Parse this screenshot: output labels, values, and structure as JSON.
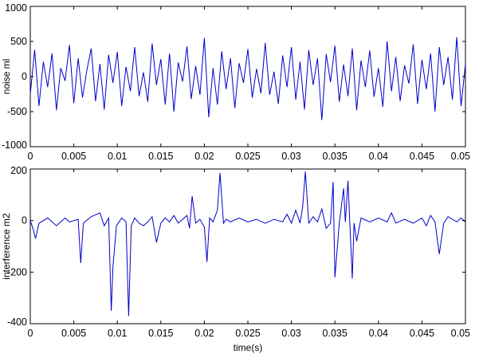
{
  "chart_data": [
    {
      "type": "line",
      "title": "",
      "xlabel": "",
      "ylabel": "noise ml",
      "xlim": [
        0,
        0.05
      ],
      "ylim": [
        -1000,
        1000
      ],
      "x_ticks": [
        "0",
        "0.005",
        "0.01",
        "0.015",
        "0.02",
        "0.025",
        "0.03",
        "0.035",
        "0.04",
        "0.045",
        "0.05"
      ],
      "y_ticks": [
        "1000",
        "500",
        "0",
        "-500",
        "-1000"
      ],
      "grid": false,
      "series": [
        {
          "color": "#0000cc",
          "x": [
            0,
            0.0005,
            0.001,
            0.0015,
            0.002,
            0.0025,
            0.003,
            0.0035,
            0.004,
            0.0045,
            0.005,
            0.0055,
            0.006,
            0.0065,
            0.007,
            0.0075,
            0.008,
            0.0085,
            0.009,
            0.0095,
            0.01,
            0.0105,
            0.011,
            0.0115,
            0.012,
            0.0125,
            0.013,
            0.0135,
            0.014,
            0.0145,
            0.015,
            0.0155,
            0.016,
            0.0165,
            0.017,
            0.0175,
            0.018,
            0.0185,
            0.019,
            0.0195,
            0.02,
            0.0205,
            0.021,
            0.0215,
            0.022,
            0.0225,
            0.023,
            0.0235,
            0.024,
            0.0245,
            0.025,
            0.0255,
            0.026,
            0.0265,
            0.027,
            0.0275,
            0.028,
            0.0285,
            0.029,
            0.0295,
            0.03,
            0.0305,
            0.031,
            0.0315,
            0.032,
            0.0325,
            0.033,
            0.0335,
            0.034,
            0.0345,
            0.035,
            0.0355,
            0.036,
            0.0365,
            0.037,
            0.0375,
            0.038,
            0.0385,
            0.039,
            0.0395,
            0.04,
            0.0405,
            0.041,
            0.0415,
            0.042,
            0.0425,
            0.043,
            0.0435,
            0.044,
            0.0445,
            0.045,
            0.0455,
            0.046,
            0.0465,
            0.047,
            0.0475,
            0.048,
            0.0485,
            0.049,
            0.0495,
            0.05
          ],
          "values": [
            -250,
            380,
            -420,
            210,
            -150,
            330,
            -480,
            120,
            -60,
            450,
            -380,
            260,
            -300,
            90,
            400,
            -350,
            180,
            -470,
            310,
            -90,
            350,
            -420,
            140,
            -210,
            420,
            -280,
            60,
            -360,
            470,
            -120,
            250,
            -400,
            330,
            -500,
            200,
            -70,
            430,
            -320,
            150,
            -260,
            550,
            -580,
            120,
            -400,
            360,
            -180,
            260,
            -450,
            190,
            -90,
            390,
            -300,
            110,
            -240,
            480,
            -260,
            70,
            -390,
            300,
            -150,
            420,
            -330,
            210,
            -470,
            380,
            -120,
            260,
            -620,
            320,
            -80,
            440,
            -360,
            170,
            -280,
            400,
            -480,
            230,
            -150,
            370,
            -290,
            120,
            -430,
            500,
            -210,
            280,
            -350,
            160,
            -100,
            460,
            -390,
            240,
            -180,
            330,
            -500,
            420,
            -120,
            280,
            -330,
            560,
            -420,
            180
          ]
        }
      ]
    },
    {
      "type": "line",
      "title": "",
      "xlabel": "time(s)",
      "ylabel": "interference m2",
      "xlim": [
        0,
        0.05
      ],
      "ylim": [
        -400,
        200
      ],
      "x_ticks": [
        "0",
        "0.005",
        "0.01",
        "0.015",
        "0.02",
        "0.025",
        "0.03",
        "0.035",
        "0.04",
        "0.045",
        "0.05"
      ],
      "y_ticks": [
        "200",
        "0",
        "-200",
        "-400"
      ],
      "grid": false,
      "series": [
        {
          "color": "#0000cc",
          "x": [
            0,
            0.0003,
            0.0006,
            0.001,
            0.002,
            0.003,
            0.004,
            0.0045,
            0.005,
            0.0055,
            0.0058,
            0.0061,
            0.007,
            0.008,
            0.0085,
            0.009,
            0.0093,
            0.0095,
            0.0099,
            0.0105,
            0.011,
            0.0113,
            0.0116,
            0.012,
            0.0125,
            0.013,
            0.0135,
            0.014,
            0.0145,
            0.015,
            0.0155,
            0.016,
            0.0165,
            0.017,
            0.0175,
            0.018,
            0.0183,
            0.0186,
            0.019,
            0.0195,
            0.02,
            0.0203,
            0.0206,
            0.021,
            0.0215,
            0.0218,
            0.0222,
            0.0225,
            0.023,
            0.024,
            0.025,
            0.026,
            0.027,
            0.028,
            0.029,
            0.0295,
            0.03,
            0.0305,
            0.031,
            0.0313,
            0.0316,
            0.032,
            0.0325,
            0.033,
            0.0335,
            0.034,
            0.0345,
            0.0348,
            0.035,
            0.0355,
            0.036,
            0.0362,
            0.0365,
            0.037,
            0.0372,
            0.0375,
            0.038,
            0.039,
            0.04,
            0.041,
            0.0415,
            0.042,
            0.043,
            0.044,
            0.045,
            0.0455,
            0.046,
            0.0465,
            0.047,
            0.0475,
            0.048,
            0.049,
            0.0495,
            0.05
          ],
          "values": [
            0,
            -30,
            -70,
            -10,
            10,
            -20,
            10,
            -5,
            0,
            5,
            -165,
            -10,
            15,
            30,
            -20,
            10,
            -350,
            -180,
            -20,
            10,
            -5,
            -370,
            -20,
            10,
            -10,
            -20,
            -5,
            15,
            -85,
            -10,
            10,
            -5,
            20,
            -10,
            5,
            20,
            -30,
            95,
            -10,
            5,
            -25,
            -160,
            10,
            -5,
            40,
            185,
            -10,
            5,
            -5,
            10,
            -5,
            5,
            -10,
            5,
            -5,
            25,
            -10,
            40,
            -10,
            55,
            190,
            -10,
            15,
            -5,
            45,
            -30,
            -10,
            150,
            -220,
            -10,
            125,
            -5,
            155,
            -225,
            -10,
            -80,
            10,
            -5,
            10,
            -5,
            30,
            -10,
            5,
            -10,
            10,
            -20,
            20,
            -5,
            -130,
            -10,
            15,
            -5,
            10,
            -5
          ]
        }
      ]
    }
  ]
}
